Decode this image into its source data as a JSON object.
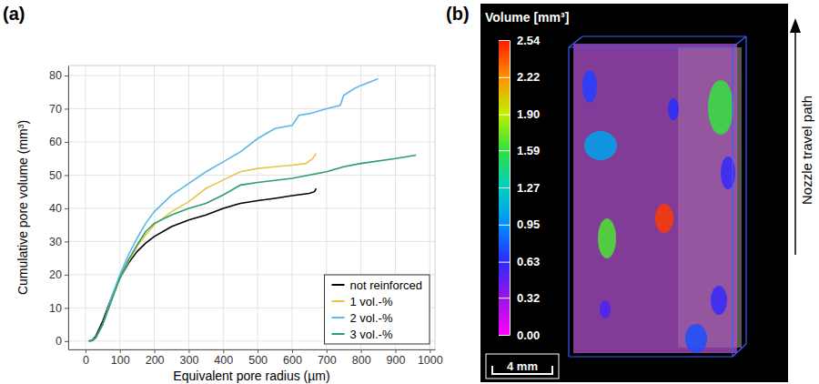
{
  "chart_data": [
    {
      "type": "line",
      "panel": "(a)",
      "x_label": "Equivalent pore radius (µm)",
      "y_label": "Cumulative pore volume (mm³)",
      "xlim": [
        -50,
        1015
      ],
      "ylim": [
        -2.5,
        83
      ],
      "xticks": [
        0,
        100,
        200,
        300,
        400,
        500,
        600,
        700,
        800,
        900,
        1000
      ],
      "yticks": [
        0,
        10,
        20,
        30,
        40,
        50,
        60,
        70,
        80
      ],
      "grid": true,
      "legend": "bottom-right",
      "series": [
        {
          "name": "not reinforced",
          "color": "#000000",
          "x": [
            10,
            20,
            30,
            50,
            75,
            100,
            125,
            150,
            175,
            200,
            250,
            300,
            350,
            400,
            450,
            500,
            550,
            600,
            650,
            665,
            670
          ],
          "values": [
            0,
            0.3,
            1.5,
            6,
            13,
            19,
            23.5,
            27,
            29.5,
            31.5,
            34.5,
            36.5,
            38,
            40,
            41.5,
            42.3,
            43,
            43.8,
            44.5,
            45,
            46
          ]
        },
        {
          "name": "1 vol.-%",
          "color": "#e8c547",
          "x": [
            10,
            20,
            30,
            50,
            75,
            100,
            125,
            150,
            175,
            200,
            250,
            300,
            350,
            400,
            450,
            500,
            550,
            600,
            640,
            660,
            670
          ],
          "values": [
            0,
            0.2,
            1,
            5,
            12,
            19,
            24,
            28.5,
            32,
            35,
            39,
            42,
            46,
            48.5,
            51,
            52,
            52.5,
            53,
            53.5,
            55,
            56.5
          ]
        },
        {
          "name": "2 vol.-%",
          "color": "#5bb8e8",
          "x": [
            10,
            20,
            30,
            50,
            75,
            100,
            125,
            150,
            175,
            200,
            250,
            300,
            350,
            400,
            450,
            500,
            550,
            600,
            620,
            650,
            700,
            740,
            750,
            780,
            800,
            850
          ],
          "values": [
            0,
            0.2,
            1,
            5,
            13,
            20,
            26,
            31,
            35.5,
            39,
            44,
            47.5,
            51,
            54,
            57,
            61,
            64,
            65,
            68,
            68.5,
            70,
            71,
            74,
            76,
            77,
            79
          ]
        },
        {
          "name": "3 vol.-%",
          "color": "#2a9d6f",
          "x": [
            10,
            20,
            30,
            50,
            75,
            100,
            125,
            150,
            175,
            200,
            250,
            300,
            350,
            400,
            450,
            500,
            600,
            700,
            750,
            800,
            900,
            960
          ],
          "values": [
            0,
            0.2,
            1,
            5,
            12,
            19,
            24.5,
            29,
            33,
            35.5,
            38,
            40,
            41.5,
            44,
            47,
            47.8,
            49,
            51,
            52.5,
            53.5,
            55,
            56
          ]
        }
      ]
    },
    {
      "type": "volume_rendering",
      "panel": "(b)",
      "colorbar": {
        "title": "Volume [mm³]",
        "range": [
          0,
          2.54
        ],
        "ticks": [
          {
            "value": 0,
            "label": "0.00"
          },
          0.32,
          0.63,
          0.95,
          1.27,
          1.59,
          {
            "value": 1.9,
            "label": "1.90"
          },
          2.22,
          2.54
        ]
      },
      "pore_volumes": [
        0.7,
        1.6,
        0.65,
        1.05,
        0.6,
        1.65,
        2.45,
        0.6,
        0.75,
        0.55
      ],
      "scale_bar": "4 mm",
      "annotation": "Nozzle travel path"
    }
  ]
}
